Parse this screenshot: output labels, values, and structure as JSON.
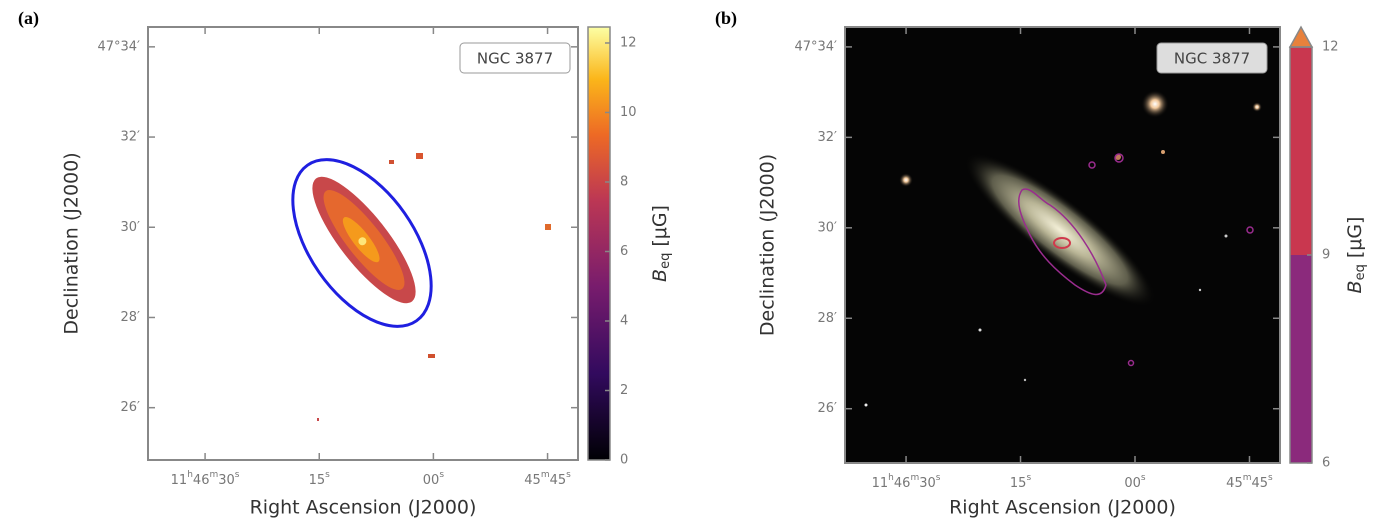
{
  "chart_data": [
    {
      "type": "image",
      "panel_label": "(a)",
      "annotation": "NGC 3877",
      "x_label": "Right Ascension (J2000)",
      "y_label": "Declination (J2000)",
      "xlim": [
        2797.5,
        2741
      ],
      "xticks": [
        {
          "value": 2790,
          "label": "11h46m30s"
        },
        {
          "value": 2775,
          "label": "15s"
        },
        {
          "value": 2760,
          "label": "00s"
        },
        {
          "value": 2745,
          "label": "45m45s"
        }
      ],
      "ylim": [
        24.84,
        34.44
      ],
      "yticks": [
        {
          "value": 34,
          "label": "47°34′"
        },
        {
          "value": 32,
          "label": "32′"
        },
        {
          "value": 30,
          "label": "30′"
        },
        {
          "value": 28,
          "label": "28′"
        },
        {
          "value": 26,
          "label": "26′"
        }
      ],
      "colorbar": {
        "symbol": "B",
        "subscript": "eq",
        "unit": "[μG]",
        "ylim": [
          0,
          12.46
        ],
        "yticks": [
          0,
          2,
          4,
          6,
          8,
          10,
          12
        ]
      }
    },
    {
      "type": "image",
      "panel_label": "(b)",
      "annotation": "NGC 3877",
      "x_label": "Right Ascension (J2000)",
      "y_label": "Declination (J2000)",
      "xlim": [
        2798,
        2741
      ],
      "xticks": [
        {
          "value": 2790,
          "label": "11h46m30s"
        },
        {
          "value": 2775,
          "label": "15s"
        },
        {
          "value": 2760,
          "label": "00s"
        },
        {
          "value": 2745,
          "label": "45m45s"
        }
      ],
      "ylim": [
        24.8,
        34.44
      ],
      "yticks": [
        {
          "value": 34,
          "label": "47°34′"
        },
        {
          "value": 32,
          "label": "32′"
        },
        {
          "value": 30,
          "label": "30′"
        },
        {
          "value": 28,
          "label": "28′"
        },
        {
          "value": 26,
          "label": "26′"
        }
      ],
      "colorbar": {
        "symbol": "B",
        "subscript": "eq",
        "unit": "[μG]",
        "ylim": [
          6,
          12
        ],
        "yticks": [
          6,
          9,
          12
        ],
        "colors": [
          "#8b2a7c",
          "#c9374f"
        ],
        "extend_color": "#e8813c"
      }
    }
  ]
}
